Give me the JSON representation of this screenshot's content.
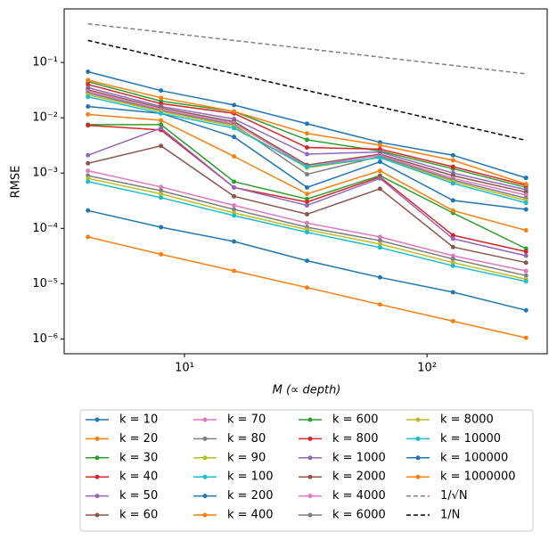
{
  "chart_data": {
    "type": "line",
    "xlabel": "M   (∝ depth)",
    "ylabel": "RMSE",
    "log_x": true,
    "log_y": true,
    "legend": "below",
    "x": [
      4,
      8,
      16,
      32,
      64,
      128,
      256
    ],
    "xlim": [
      3.19,
      313
    ],
    "ylim": [
      5.4e-07,
      0.93
    ],
    "xticks": [
      {
        "value": 10,
        "label": "10¹"
      },
      {
        "value": 100,
        "label": "10²"
      }
    ],
    "yticks": [
      {
        "value": 1e-06,
        "label": "10⁻⁶"
      },
      {
        "value": 1e-05,
        "label": "10⁻⁵"
      },
      {
        "value": 0.0001,
        "label": "10⁻⁴"
      },
      {
        "value": 0.001,
        "label": "10⁻³"
      },
      {
        "value": 0.01,
        "label": "10⁻²"
      },
      {
        "value": 0.1,
        "label": "10⁻¹"
      }
    ],
    "series": [
      {
        "name": "k = 10",
        "color": "#1f77b4",
        "values": [
          0.00021,
          0.000105,
          5.8e-05,
          2.6e-05,
          1.3e-05,
          7e-06,
          3.3e-06
        ]
      },
      {
        "name": "k = 20",
        "color": "#ff7f0e",
        "values": [
          7e-05,
          3.4e-05,
          1.7e-05,
          8.5e-06,
          4.2e-06,
          2.1e-06,
          1.05e-06
        ]
      },
      {
        "name": "k = 30",
        "color": "#2ca02c",
        "values": [
          0.0075,
          0.0075,
          0.0007,
          0.00034,
          0.0009,
          0.00019,
          4.3e-05
        ]
      },
      {
        "name": "k = 40",
        "color": "#d62728",
        "values": [
          0.0073,
          0.006,
          0.00055,
          0.0003,
          0.00085,
          7.5e-05,
          3.8e-05
        ]
      },
      {
        "name": "k = 50",
        "color": "#9467bd",
        "values": [
          0.0021,
          0.0065,
          0.00055,
          0.00026,
          0.0008,
          6.5e-05,
          3.2e-05
        ]
      },
      {
        "name": "k = 60",
        "color": "#8c564b",
        "values": [
          0.0015,
          0.0031,
          0.00038,
          0.00018,
          0.00052,
          4.6e-05,
          2.4e-05
        ]
      },
      {
        "name": "k = 70",
        "color": "#e377c2",
        "values": [
          0.0011,
          0.00056,
          0.00026,
          0.000125,
          7e-05,
          3.2e-05,
          1.7e-05
        ]
      },
      {
        "name": "k = 80",
        "color": "#7f7f7f",
        "values": [
          0.0009,
          0.00048,
          0.00022,
          0.000105,
          6e-05,
          2.8e-05,
          1.4e-05
        ]
      },
      {
        "name": "k = 90",
        "color": "#bcbd22",
        "values": [
          0.0008,
          0.00042,
          0.00019,
          9.5e-05,
          5.2e-05,
          2.4e-05,
          1.2e-05
        ]
      },
      {
        "name": "k = 100",
        "color": "#17becf",
        "values": [
          0.0007,
          0.00036,
          0.00017,
          8.5e-05,
          4.5e-05,
          2.1e-05,
          1.1e-05
        ]
      },
      {
        "name": "k = 200",
        "color": "#1f77b4",
        "values": [
          0.016,
          0.012,
          0.0045,
          0.00055,
          0.0016,
          0.00032,
          0.00022
        ]
      },
      {
        "name": "k = 400",
        "color": "#ff7f0e",
        "values": [
          0.0115,
          0.009,
          0.002,
          0.00042,
          0.0011,
          0.00021,
          9.2e-05
        ]
      },
      {
        "name": "k = 600",
        "color": "#2ca02c",
        "values": [
          0.045,
          0.02,
          0.013,
          0.004,
          0.0025,
          0.0012,
          0.00055
        ]
      },
      {
        "name": "k = 800",
        "color": "#d62728",
        "values": [
          0.04,
          0.018,
          0.012,
          0.0029,
          0.0027,
          0.0013,
          0.0006
        ]
      },
      {
        "name": "k = 1000",
        "color": "#9467bd",
        "values": [
          0.035,
          0.016,
          0.0095,
          0.0022,
          0.0024,
          0.001,
          0.0005
        ]
      },
      {
        "name": "k = 2000",
        "color": "#8c564b",
        "values": [
          0.032,
          0.015,
          0.0085,
          0.0014,
          0.0022,
          0.0009,
          0.00045
        ]
      },
      {
        "name": "k = 4000",
        "color": "#e377c2",
        "values": [
          0.03,
          0.014,
          0.008,
          0.0013,
          0.0021,
          0.0008,
          0.0004
        ]
      },
      {
        "name": "k = 6000",
        "color": "#7f7f7f",
        "values": [
          0.028,
          0.0135,
          0.0075,
          0.00095,
          0.002,
          0.00075,
          0.00035
        ]
      },
      {
        "name": "k = 8000",
        "color": "#bcbd22",
        "values": [
          0.026,
          0.013,
          0.007,
          0.00125,
          0.0019,
          0.0007,
          0.00032
        ]
      },
      {
        "name": "k = 10000",
        "color": "#17becf",
        "values": [
          0.024,
          0.012,
          0.0065,
          0.0013,
          0.0019,
          0.00065,
          0.00029
        ]
      },
      {
        "name": "k = 100000",
        "color": "#1f77b4",
        "values": [
          0.068,
          0.031,
          0.017,
          0.0078,
          0.0036,
          0.0021,
          0.00082
        ]
      },
      {
        "name": "k = 1000000",
        "color": "#ff7f0e",
        "values": [
          0.048,
          0.023,
          0.013,
          0.0052,
          0.0032,
          0.0017,
          0.00063
        ]
      },
      {
        "name": "1/√N",
        "color": "#808080",
        "linestyle": "dashed",
        "values": [
          0.5,
          0.354,
          0.25,
          0.177,
          0.125,
          0.0884,
          0.0625
        ]
      },
      {
        "name": "1/N",
        "color": "#000000",
        "linestyle": "dashed",
        "values": [
          0.25,
          0.125,
          0.0625,
          0.03125,
          0.015625,
          0.0078125,
          0.00390625
        ]
      }
    ]
  }
}
